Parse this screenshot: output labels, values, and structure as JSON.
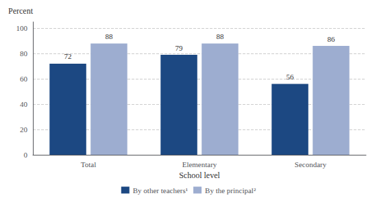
{
  "chart_data": {
    "type": "bar",
    "categories": [
      "Total",
      "Elementary",
      "Secondary"
    ],
    "series": [
      {
        "name": "By other teachers¹",
        "color": "#1c4882",
        "values": [
          72,
          79,
          56
        ]
      },
      {
        "name": "By the principal²",
        "color": "#9dadd0",
        "values": [
          88,
          88,
          86
        ]
      }
    ],
    "xlabel": "School level",
    "ylabel": "Percent",
    "ylim": [
      0,
      105
    ],
    "yticks": [
      0,
      20,
      40,
      60,
      80,
      100
    ],
    "grid": true,
    "data_labels": true,
    "legend": "bottom"
  }
}
